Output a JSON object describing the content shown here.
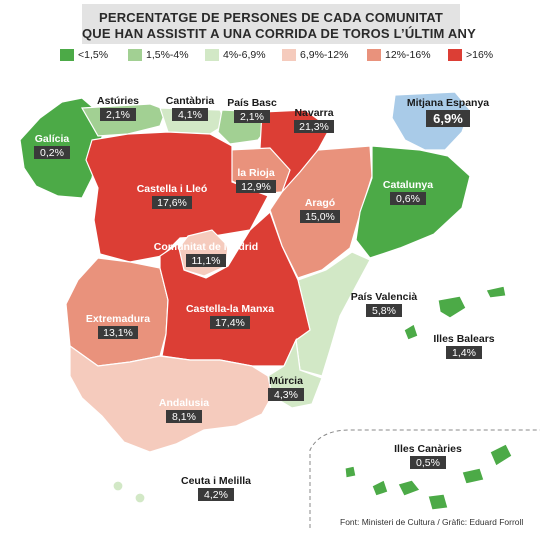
{
  "title": {
    "line1": "PERCENTATGE DE PERSONES DE CADA COMUNITAT",
    "line2": "QUE HAN ASSISTIT A UNA CORRIDA DE TOROS L’ÚLTIM ANY"
  },
  "legend": [
    {
      "label": "<1,5%",
      "color": "#4caa47"
    },
    {
      "label": "1,5%-4%",
      "color": "#a2d093"
    },
    {
      "label": "4%-6,9%",
      "color": "#d2e8c6"
    },
    {
      "label": "6,9%-12%",
      "color": "#f5cbbd"
    },
    {
      "label": "12%-16%",
      "color": "#e9927c"
    },
    {
      "label": ">16%",
      "color": "#dc3e35"
    }
  ],
  "national_average": {
    "label": "Mitjana Espanya",
    "value": "6,9%",
    "color": "#a9cbe8"
  },
  "regions": [
    {
      "id": "galicia",
      "name": "Galícia",
      "value": "0,2%",
      "color": "#4caa47"
    },
    {
      "id": "asturies",
      "name": "Astúries",
      "value": "2,1%",
      "color": "#a2d093"
    },
    {
      "id": "cantabria",
      "name": "Cantàbria",
      "value": "4,1%",
      "color": "#d2e8c6"
    },
    {
      "id": "pais-basc",
      "name": "País Basc",
      "value": "2,1%",
      "color": "#a2d093"
    },
    {
      "id": "navarra",
      "name": "Navarra",
      "value": "21,3%",
      "color": "#dc3e35"
    },
    {
      "id": "la-rioja",
      "name": "la Rioja",
      "value": "12,9%",
      "color": "#e9927c"
    },
    {
      "id": "castella-i-lleo",
      "name": "Castella i Lleó",
      "value": "17,6%",
      "color": "#dc3e35"
    },
    {
      "id": "arago",
      "name": "Aragó",
      "value": "15,0%",
      "color": "#e9927c"
    },
    {
      "id": "catalunya",
      "name": "Catalunya",
      "value": "0,6%",
      "color": "#4caa47"
    },
    {
      "id": "comunitat-de-madrid",
      "name": "Comunitat de Madrid",
      "value": "11,1%",
      "color": "#f5cbbd"
    },
    {
      "id": "pais-valencia",
      "name": "País Valencià",
      "value": "5,8%",
      "color": "#d2e8c6"
    },
    {
      "id": "extremadura",
      "name": "Extremadura",
      "value": "13,1%",
      "color": "#e9927c"
    },
    {
      "id": "castella-la-manxa",
      "name": "Castella-la Manxa",
      "value": "17,4%",
      "color": "#dc3e35"
    },
    {
      "id": "illes-balears",
      "name": "Illes Balears",
      "value": "1,4%",
      "color": "#4caa47"
    },
    {
      "id": "murcia",
      "name": "Múrcia",
      "value": "4,3%",
      "color": "#d2e8c6"
    },
    {
      "id": "andalusia",
      "name": "Andalusia",
      "value": "8,1%",
      "color": "#f5cbbd"
    },
    {
      "id": "illes-canaries",
      "name": "Illes Canàries",
      "value": "0,5%",
      "color": "#4caa47"
    },
    {
      "id": "ceuta-i-melilla",
      "name": "Ceuta i Melilla",
      "value": "4,2%",
      "color": "#d2e8c6"
    }
  ],
  "footer": "Font: Ministeri de Cultura / Gràfic: Eduard Forroll"
}
